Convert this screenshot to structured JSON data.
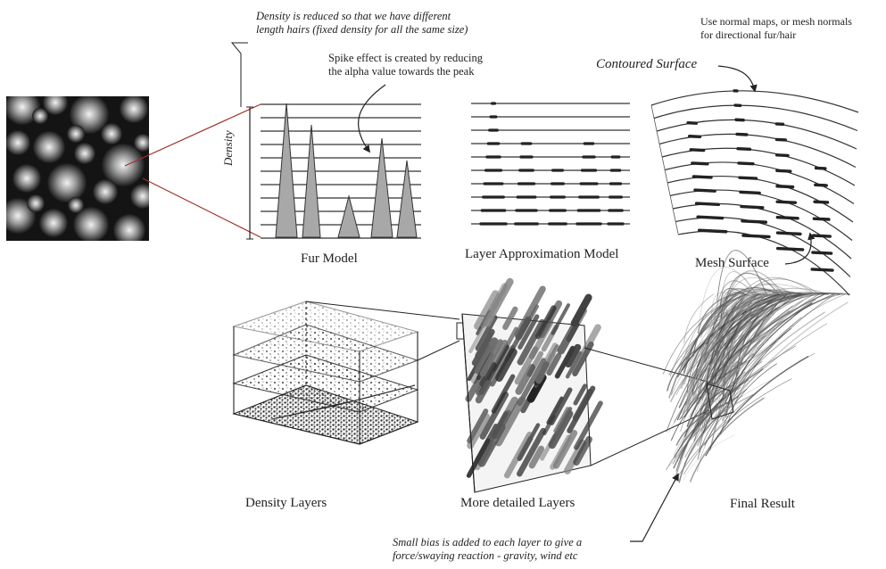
{
  "annotations": {
    "density_note": [
      "Density is reduced so that we have different",
      "length hairs (fixed density for all the same size)"
    ],
    "spike_note": [
      "Spike effect is created by reducing",
      "the alpha value towards the peak"
    ],
    "normals_note": [
      "Use normal maps, or mesh normals",
      "for directional fur/hair"
    ],
    "contoured_surface": "Contoured Surface",
    "density_axis": "Density",
    "bias_note": [
      "Small bias is added to each layer to give a",
      "force/swaying reaction - gravity, wind etc"
    ]
  },
  "panels": {
    "fur_model": "Fur Model",
    "layer_approximation": "Layer Approximation Model",
    "mesh_surface": "Mesh Surface",
    "density_layers": "Density Layers",
    "more_detailed_layers": "More detailed Layers",
    "final_result": "Final Result"
  },
  "colors": {
    "ink": "#222222",
    "leader_red": "#a0302a",
    "spike_fill": "#a8a8a8"
  }
}
